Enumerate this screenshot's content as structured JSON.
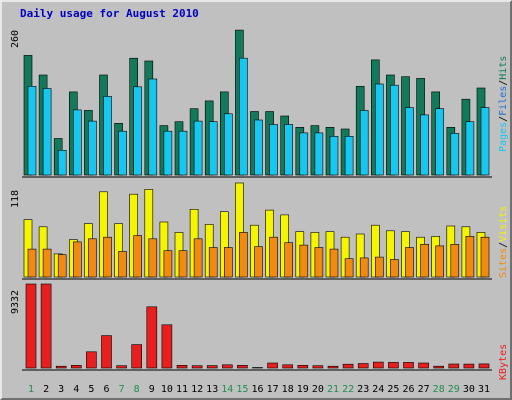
{
  "colors": {
    "background": "#c0c0c0",
    "title": "#0000c0",
    "hits": "#127a5b",
    "files": "#18c7f0",
    "pages": "#18c7f0",
    "visits": "#f5f500",
    "sites": "#f08a10",
    "kbytes": "#e81f1f",
    "tick_weekday": "#000000",
    "tick_weekend": "#1f8f4f",
    "separator": "#000000"
  },
  "chart_data": {
    "type": "bar",
    "title": "Daily usage for August 2010",
    "categories": [
      "1",
      "2",
      "3",
      "4",
      "5",
      "6",
      "7",
      "8",
      "9",
      "10",
      "11",
      "12",
      "13",
      "14",
      "15",
      "16",
      "17",
      "18",
      "19",
      "20",
      "21",
      "22",
      "23",
      "24",
      "25",
      "26",
      "27",
      "28",
      "29",
      "30",
      "31"
    ],
    "weekend_days": [
      "1",
      "7",
      "8",
      "14",
      "15",
      "21",
      "22",
      "28",
      "29"
    ],
    "panels": [
      {
        "name": "hits_files_pages",
        "ymax_label": "260",
        "ymax": 260,
        "legend": [
          "Pages",
          "/",
          "Files",
          "/",
          "Hits"
        ],
        "series": [
          {
            "name": "Hits",
            "values": [
              213,
              178,
              65,
              148,
              115,
              178,
              92,
              208,
              203,
              88,
              95,
              118,
              132,
              148,
              258,
              113,
              113,
              105,
              85,
              88,
              85,
              82,
              158,
              205,
              178,
              175,
              172,
              148,
              85,
              135,
              155
            ]
          },
          {
            "name": "Files",
            "values": [
              158,
              154,
              44,
              116,
              96,
              140,
              78,
              157,
              171,
              78,
              78,
              96,
              95,
              109,
              208,
              98,
              90,
              90,
              75,
              75,
              69,
              69,
              115,
              162,
              160,
              120,
              107,
              118,
              74,
              95,
              120
            ]
          },
          {
            "name": "Pages",
            "values": [
              158,
              154,
              44,
              116,
              96,
              140,
              78,
              157,
              171,
              78,
              78,
              96,
              95,
              109,
              208,
              98,
              90,
              90,
              75,
              75,
              69,
              69,
              115,
              162,
              160,
              120,
              107,
              118,
              74,
              95,
              120
            ]
          }
        ]
      },
      {
        "name": "visits_sites",
        "ymax_label": "118",
        "ymax": 118,
        "legend": [
          "Sites",
          "/",
          "Visits"
        ],
        "series": [
          {
            "name": "Visits",
            "values": [
              72,
              63,
              29,
              47,
              67,
              107,
              67,
              104,
              110,
              69,
              56,
              85,
              66,
              82,
              118,
              65,
              84,
              78,
              57,
              56,
              57,
              50,
              54,
              65,
              58,
              57,
              50,
              51,
              64,
              63,
              56
            ]
          },
          {
            "name": "Sites",
            "values": [
              35,
              35,
              28,
              44,
              48,
              50,
              32,
              52,
              48,
              33,
              33,
              48,
              37,
              37,
              56,
              38,
              50,
              43,
              40,
              37,
              35,
              23,
              24,
              25,
              22,
              37,
              41,
              39,
              41,
              51,
              50
            ]
          }
        ]
      },
      {
        "name": "kbytes",
        "ymax_label": "9332",
        "ymax": 9332,
        "legend": [
          "KBytes"
        ],
        "series": [
          {
            "name": "KBytes",
            "values": [
              9332,
              9332,
              200,
              300,
              1800,
              3600,
              250,
              2600,
              6800,
              4800,
              300,
              250,
              270,
              350,
              300,
              60,
              550,
              350,
              300,
              250,
              200,
              420,
              500,
              650,
              620,
              620,
              550,
              200,
              440,
              430,
              450
            ]
          }
        ]
      }
    ]
  }
}
